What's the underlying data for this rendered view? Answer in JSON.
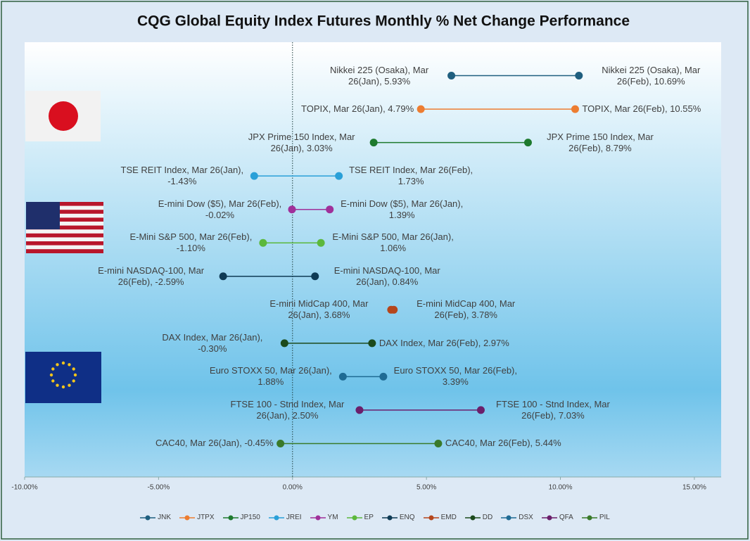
{
  "chart_data": {
    "type": "dumbbell",
    "title": "CQG Global Equity Index Futures Monthly % Net Change Performance",
    "xlim": [
      -10,
      16
    ],
    "xticks": [
      {
        "value": -10,
        "label": "-10.00%"
      },
      {
        "value": -5,
        "label": "-5.00%"
      },
      {
        "value": 0,
        "label": "0.00%"
      },
      {
        "value": 5,
        "label": "5.00%"
      },
      {
        "value": 10,
        "label": "10.00%"
      },
      {
        "value": 15,
        "label": "15.00%"
      }
    ],
    "grid": false,
    "legend": "bottom",
    "series": [
      {
        "name": "JNK",
        "color": "#1f5f7f",
        "values": [
          5.93,
          10.69
        ],
        "value_labels": [
          "Nikkei 225 (Osaka), Mar 26(Jan), 5.93%",
          "Nikkei 225 (Osaka), Mar 26(Feb), 10.69%"
        ]
      },
      {
        "name": "JTPX",
        "color": "#ed7d31",
        "values": [
          4.79,
          10.55
        ],
        "value_labels": [
          "TOPIX, Mar 26(Jan), 4.79%",
          "TOPIX, Mar 26(Feb), 10.55%"
        ]
      },
      {
        "name": "JP150",
        "color": "#1e7a2e",
        "values": [
          3.03,
          8.79
        ],
        "value_labels": [
          "JPX Prime 150 Index, Mar 26(Jan), 3.03%",
          "JPX Prime 150 Index, Mar 26(Feb), 8.79%"
        ]
      },
      {
        "name": "JREI",
        "color": "#2aa0d8",
        "values": [
          -1.43,
          1.73
        ],
        "value_labels": [
          "TSE REIT Index, Mar 26(Jan), -1.43%",
          "TSE REIT Index, Mar 26(Feb), 1.73%"
        ]
      },
      {
        "name": "YM",
        "color": "#a0309a",
        "values": [
          1.39,
          -0.02
        ],
        "value_labels": [
          "E-mini Dow ($5), Mar 26(Jan), 1.39%",
          "E-mini Dow ($5), Mar 26(Feb), -0.02%"
        ]
      },
      {
        "name": "EP",
        "color": "#5cb83c",
        "values": [
          1.06,
          -1.1
        ],
        "value_labels": [
          "E-Mini S&P 500, Mar 26(Jan), 1.06%",
          "E-Mini S&P 500, Mar 26(Feb), -1.10%"
        ]
      },
      {
        "name": "ENQ",
        "color": "#0f3b55",
        "values": [
          0.84,
          -2.59
        ],
        "value_labels": [
          "E-mini NASDAQ-100, Mar 26(Jan), 0.84%",
          "E-mini NASDAQ-100, Mar 26(Feb), -2.59%"
        ]
      },
      {
        "name": "EMD",
        "color": "#b5461c",
        "values": [
          3.68,
          3.78
        ],
        "value_labels": [
          "E-mini MidCap 400, Mar 26(Jan), 3.68%",
          "E-mini MidCap 400, Mar 26(Feb), 3.78%"
        ]
      },
      {
        "name": "DD",
        "color": "#1c4a1c",
        "values": [
          -0.3,
          2.97
        ],
        "value_labels": [
          "DAX Index, Mar 26(Jan), -0.30%",
          "DAX Index, Mar 26(Feb), 2.97%"
        ]
      },
      {
        "name": "DSX",
        "color": "#1f6b94",
        "values": [
          1.88,
          3.39
        ],
        "value_labels": [
          "Euro STOXX 50, Mar 26(Jan), 1.88%",
          "Euro STOXX 50, Mar 26(Feb), 3.39%"
        ]
      },
      {
        "name": "QFA",
        "color": "#6b1f6b",
        "values": [
          2.5,
          7.03
        ],
        "value_labels": [
          "FTSE 100 - Stnd Index, Mar 26(Jan), 2.50%",
          "FTSE 100 - Stnd Index, Mar 26(Feb), 7.03%"
        ]
      },
      {
        "name": "PIL",
        "color": "#3a7a2a",
        "values": [
          -0.45,
          5.44
        ],
        "value_labels": [
          "CAC40, Mar 26(Jan), -0.45%",
          "CAC40, Mar 26(Feb), 5.44%"
        ]
      }
    ]
  }
}
